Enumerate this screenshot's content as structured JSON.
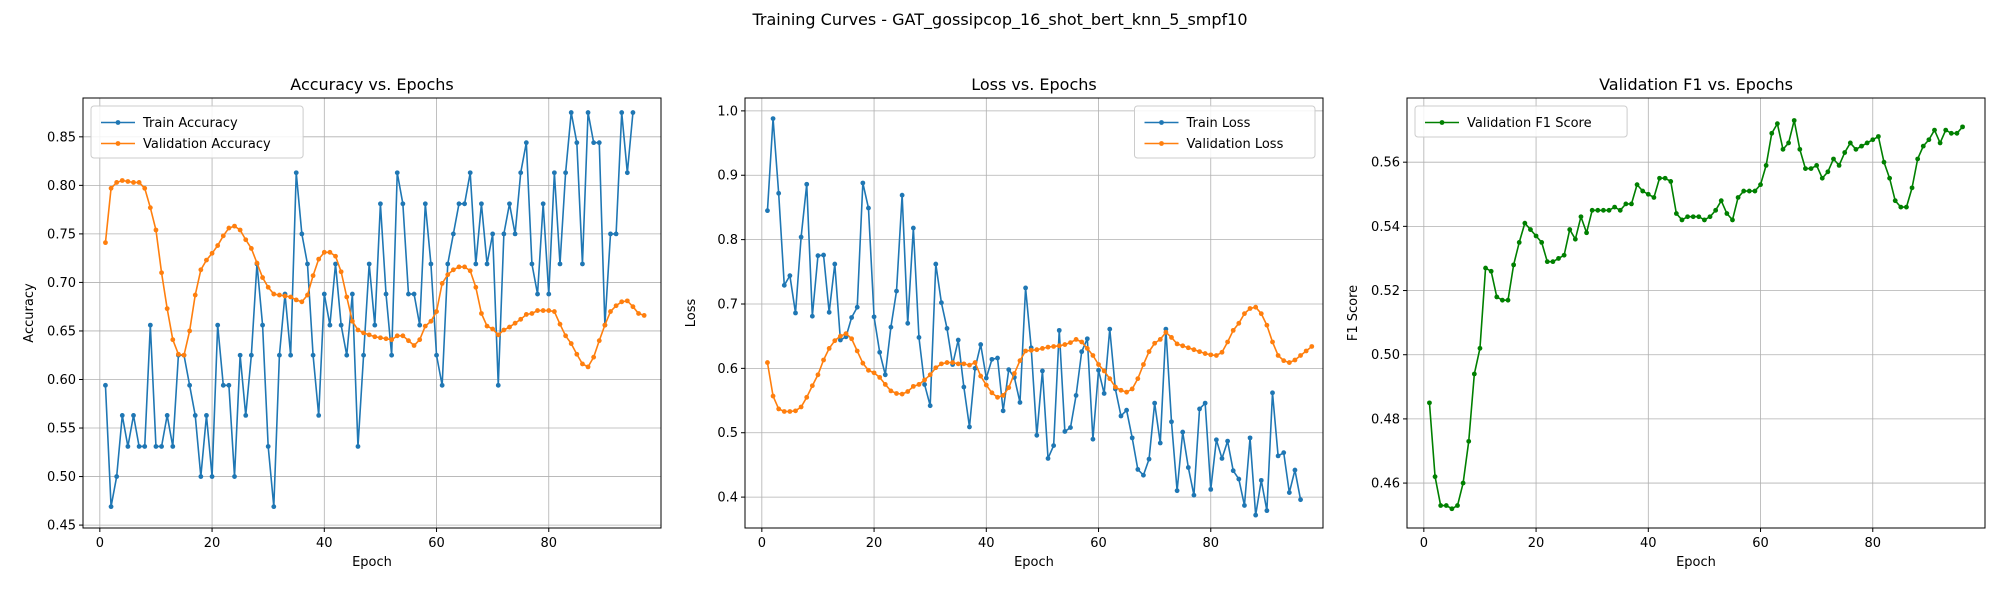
{
  "suptitle": "Training Curves - GAT_gossipcop_16_shot_bert_knn_5_smpf10",
  "colors": {
    "blue": "#1f77b4",
    "orange": "#ff7f0e",
    "green": "#008000"
  },
  "chart_data": [
    {
      "type": "line",
      "title": "Accuracy vs. Epochs",
      "xlabel": "Epoch",
      "ylabel": "Accuracy",
      "xlim": [
        -3,
        100
      ],
      "ylim": [
        0.447,
        0.89
      ],
      "xticks": [
        0,
        20,
        40,
        60,
        80
      ],
      "yticks": [
        0.45,
        0.5,
        0.55,
        0.6,
        0.65,
        0.7,
        0.75,
        0.8,
        0.85
      ],
      "ytick_decimals": 2,
      "grid": true,
      "legend": "upper-left",
      "series": [
        {
          "name": "Train Accuracy",
          "color": "#1f77b4",
          "values": [
            0.594,
            0.469,
            0.5,
            0.563,
            0.531,
            0.563,
            0.531,
            0.531,
            0.656,
            0.531,
            0.531,
            0.563,
            0.531,
            0.625,
            0.625,
            0.594,
            0.563,
            0.5,
            0.563,
            0.5,
            0.656,
            0.594,
            0.594,
            0.5,
            0.625,
            0.563,
            0.625,
            0.719,
            0.656,
            0.531,
            0.469,
            0.625,
            0.688,
            0.625,
            0.813,
            0.75,
            0.719,
            0.625,
            0.563,
            0.688,
            0.656,
            0.719,
            0.656,
            0.625,
            0.688,
            0.531,
            0.625,
            0.719,
            0.656,
            0.781,
            0.688,
            0.625,
            0.813,
            0.781,
            0.688,
            0.688,
            0.656,
            0.781,
            0.719,
            0.625,
            0.594,
            0.719,
            0.75,
            0.781,
            0.781,
            0.813,
            0.719,
            0.781,
            0.719,
            0.75,
            0.594,
            0.75,
            0.781,
            0.75,
            0.813,
            0.844,
            0.719,
            0.688,
            0.781,
            0.688,
            0.813,
            0.719,
            0.813,
            0.875,
            0.844,
            0.719,
            0.875,
            0.844,
            0.844,
            0.656,
            0.75,
            0.75,
            0.875,
            0.813,
            0.875
          ]
        },
        {
          "name": "Validation Accuracy",
          "color": "#ff7f0e",
          "values": [
            0.741,
            0.797,
            0.803,
            0.805,
            0.804,
            0.803,
            0.803,
            0.797,
            0.777,
            0.754,
            0.71,
            0.673,
            0.641,
            0.626,
            0.625,
            0.65,
            0.687,
            0.713,
            0.723,
            0.73,
            0.738,
            0.748,
            0.756,
            0.758,
            0.754,
            0.744,
            0.735,
            0.72,
            0.705,
            0.695,
            0.688,
            0.687,
            0.686,
            0.685,
            0.682,
            0.68,
            0.687,
            0.707,
            0.724,
            0.731,
            0.731,
            0.727,
            0.711,
            0.685,
            0.66,
            0.651,
            0.648,
            0.646,
            0.644,
            0.643,
            0.642,
            0.641,
            0.645,
            0.645,
            0.64,
            0.635,
            0.641,
            0.655,
            0.66,
            0.67,
            0.699,
            0.708,
            0.713,
            0.716,
            0.716,
            0.712,
            0.695,
            0.668,
            0.655,
            0.652,
            0.646,
            0.651,
            0.654,
            0.658,
            0.662,
            0.667,
            0.668,
            0.671,
            0.671,
            0.671,
            0.67,
            0.657,
            0.645,
            0.637,
            0.626,
            0.616,
            0.613,
            0.623,
            0.64,
            0.656,
            0.67,
            0.676,
            0.68,
            0.681,
            0.675,
            0.668,
            0.666
          ]
        }
      ]
    },
    {
      "type": "line",
      "title": "Loss vs. Epochs",
      "xlabel": "Epoch",
      "ylabel": "Loss",
      "xlim": [
        -3,
        100
      ],
      "ylim": [
        0.352,
        1.02
      ],
      "xticks": [
        0,
        20,
        40,
        60,
        80
      ],
      "yticks": [
        0.4,
        0.5,
        0.6,
        0.7,
        0.8,
        0.9,
        1.0
      ],
      "ytick_decimals": 1,
      "grid": true,
      "legend": "upper-right",
      "series": [
        {
          "name": "Train Loss",
          "color": "#1f77b4",
          "values": [
            0.845,
            0.988,
            0.872,
            0.729,
            0.744,
            0.686,
            0.804,
            0.886,
            0.681,
            0.775,
            0.776,
            0.687,
            0.762,
            0.644,
            0.649,
            0.679,
            0.695,
            0.888,
            0.849,
            0.68,
            0.625,
            0.59,
            0.664,
            0.72,
            0.869,
            0.67,
            0.818,
            0.648,
            0.575,
            0.542,
            0.762,
            0.702,
            0.662,
            0.606,
            0.644,
            0.571,
            0.509,
            0.6,
            0.637,
            0.585,
            0.614,
            0.616,
            0.534,
            0.598,
            0.586,
            0.547,
            0.725,
            0.632,
            0.496,
            0.596,
            0.46,
            0.48,
            0.659,
            0.502,
            0.508,
            0.558,
            0.626,
            0.646,
            0.49,
            0.597,
            0.561,
            0.661,
            0.568,
            0.526,
            0.535,
            0.492,
            0.443,
            0.434,
            0.459,
            0.546,
            0.484,
            0.661,
            0.517,
            0.41,
            0.501,
            0.446,
            0.403,
            0.537,
            0.546,
            0.412,
            0.489,
            0.46,
            0.487,
            0.441,
            0.428,
            0.387,
            0.492,
            0.372,
            0.426,
            0.379,
            0.562,
            0.464,
            0.469,
            0.407,
            0.442,
            0.396
          ]
        },
        {
          "name": "Validation Loss",
          "color": "#ff7f0e",
          "values": [
            0.609,
            0.557,
            0.537,
            0.533,
            0.533,
            0.534,
            0.54,
            0.555,
            0.573,
            0.59,
            0.613,
            0.631,
            0.643,
            0.65,
            0.654,
            0.646,
            0.627,
            0.608,
            0.597,
            0.593,
            0.586,
            0.575,
            0.565,
            0.561,
            0.56,
            0.564,
            0.572,
            0.575,
            0.582,
            0.59,
            0.601,
            0.607,
            0.609,
            0.609,
            0.607,
            0.607,
            0.605,
            0.609,
            0.588,
            0.574,
            0.562,
            0.555,
            0.558,
            0.57,
            0.592,
            0.612,
            0.627,
            0.628,
            0.629,
            0.631,
            0.633,
            0.634,
            0.635,
            0.637,
            0.64,
            0.645,
            0.641,
            0.631,
            0.62,
            0.606,
            0.596,
            0.584,
            0.571,
            0.566,
            0.563,
            0.568,
            0.584,
            0.606,
            0.626,
            0.639,
            0.645,
            0.656,
            0.648,
            0.638,
            0.635,
            0.632,
            0.629,
            0.626,
            0.623,
            0.621,
            0.62,
            0.625,
            0.641,
            0.659,
            0.67,
            0.685,
            0.693,
            0.695,
            0.685,
            0.667,
            0.641,
            0.62,
            0.612,
            0.609,
            0.613,
            0.62,
            0.627,
            0.634
          ]
        }
      ]
    },
    {
      "type": "line",
      "title": "Validation F1 vs. Epochs",
      "xlabel": "Epoch",
      "ylabel": "F1 Score",
      "xlim": [
        -3,
        100
      ],
      "ylim": [
        0.446,
        0.58
      ],
      "xticks": [
        0,
        20,
        40,
        60,
        80
      ],
      "yticks": [
        0.46,
        0.48,
        0.5,
        0.52,
        0.54,
        0.56
      ],
      "ytick_decimals": 2,
      "grid": true,
      "legend": "upper-left",
      "series": [
        {
          "name": "Validation F1 Score",
          "color": "#008000",
          "values": [
            0.485,
            0.462,
            0.453,
            0.453,
            0.452,
            0.453,
            0.46,
            0.473,
            0.494,
            0.502,
            0.527,
            0.526,
            0.518,
            0.517,
            0.517,
            0.528,
            0.535,
            0.541,
            0.539,
            0.537,
            0.535,
            0.529,
            0.529,
            0.53,
            0.531,
            0.539,
            0.536,
            0.543,
            0.538,
            0.545,
            0.545,
            0.545,
            0.545,
            0.546,
            0.545,
            0.547,
            0.547,
            0.553,
            0.551,
            0.55,
            0.549,
            0.555,
            0.555,
            0.554,
            0.544,
            0.542,
            0.543,
            0.543,
            0.543,
            0.542,
            0.543,
            0.545,
            0.548,
            0.544,
            0.542,
            0.549,
            0.551,
            0.551,
            0.551,
            0.553,
            0.559,
            0.569,
            0.572,
            0.564,
            0.566,
            0.573,
            0.564,
            0.558,
            0.558,
            0.559,
            0.555,
            0.557,
            0.561,
            0.559,
            0.563,
            0.566,
            0.564,
            0.565,
            0.566,
            0.567,
            0.568,
            0.56,
            0.555,
            0.548,
            0.546,
            0.546,
            0.552,
            0.561,
            0.565,
            0.567,
            0.57,
            0.566,
            0.57,
            0.569,
            0.569,
            0.571
          ]
        }
      ]
    }
  ]
}
